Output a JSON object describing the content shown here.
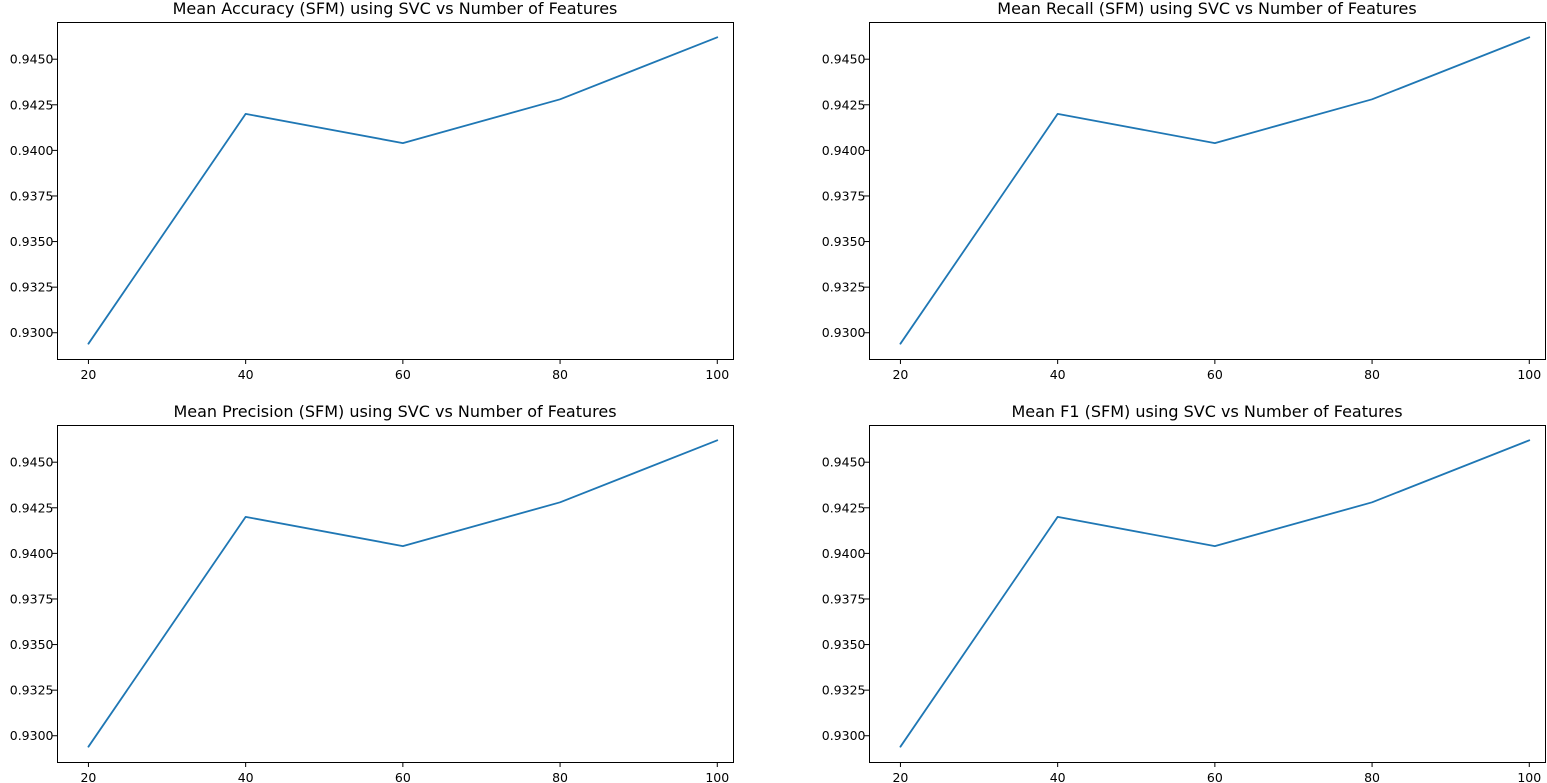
{
  "figure": {
    "background": "#ffffff",
    "line_color": "#1f77b4"
  },
  "chart_data": [
    {
      "type": "line",
      "title": "Mean Accuracy (SFM) using SVC vs Number of Features",
      "xlabel": "",
      "ylabel": "",
      "x": [
        20,
        40,
        60,
        80,
        100
      ],
      "series": [
        {
          "values": [
            0.9294,
            0.942,
            0.9404,
            0.9428,
            0.9462
          ]
        }
      ],
      "xticks": [
        20,
        40,
        60,
        80,
        100
      ],
      "xtick_labels": [
        "20",
        "40",
        "60",
        "80",
        "100"
      ],
      "yticks": [
        0.93,
        0.9325,
        0.935,
        0.9375,
        0.94,
        0.9425,
        0.945
      ],
      "ytick_labels": [
        "0.9300",
        "0.9325",
        "0.9350",
        "0.9375",
        "0.9400",
        "0.9425",
        "0.9450"
      ],
      "xlim": [
        16,
        102
      ],
      "ylim": [
        0.92856,
        0.94704
      ],
      "grid": false,
      "legend": false
    },
    {
      "type": "line",
      "title": "Mean Recall (SFM) using SVC vs Number of Features",
      "xlabel": "",
      "ylabel": "",
      "x": [
        20,
        40,
        60,
        80,
        100
      ],
      "series": [
        {
          "values": [
            0.9294,
            0.942,
            0.9404,
            0.9428,
            0.9462
          ]
        }
      ],
      "xticks": [
        20,
        40,
        60,
        80,
        100
      ],
      "xtick_labels": [
        "20",
        "40",
        "60",
        "80",
        "100"
      ],
      "yticks": [
        0.93,
        0.9325,
        0.935,
        0.9375,
        0.94,
        0.9425,
        0.945
      ],
      "ytick_labels": [
        "0.9300",
        "0.9325",
        "0.9350",
        "0.9375",
        "0.9400",
        "0.9425",
        "0.9450"
      ],
      "xlim": [
        16,
        102
      ],
      "ylim": [
        0.92856,
        0.94704
      ],
      "grid": false,
      "legend": false
    },
    {
      "type": "line",
      "title": "Mean Precision (SFM) using SVC vs Number of Features",
      "xlabel": "",
      "ylabel": "",
      "x": [
        20,
        40,
        60,
        80,
        100
      ],
      "series": [
        {
          "values": [
            0.9294,
            0.942,
            0.9404,
            0.9428,
            0.9462
          ]
        }
      ],
      "xticks": [
        20,
        40,
        60,
        80,
        100
      ],
      "xtick_labels": [
        "20",
        "40",
        "60",
        "80",
        "100"
      ],
      "yticks": [
        0.93,
        0.9325,
        0.935,
        0.9375,
        0.94,
        0.9425,
        0.945
      ],
      "ytick_labels": [
        "0.9300",
        "0.9325",
        "0.9350",
        "0.9375",
        "0.9400",
        "0.9425",
        "0.9450"
      ],
      "xlim": [
        16,
        102
      ],
      "ylim": [
        0.92856,
        0.94704
      ],
      "grid": false,
      "legend": false
    },
    {
      "type": "line",
      "title": "Mean F1 (SFM) using SVC vs Number of Features",
      "xlabel": "",
      "ylabel": "",
      "x": [
        20,
        40,
        60,
        80,
        100
      ],
      "series": [
        {
          "values": [
            0.9294,
            0.942,
            0.9404,
            0.9428,
            0.9462
          ]
        }
      ],
      "xticks": [
        20,
        40,
        60,
        80,
        100
      ],
      "xtick_labels": [
        "20",
        "40",
        "60",
        "80",
        "100"
      ],
      "yticks": [
        0.93,
        0.9325,
        0.935,
        0.9375,
        0.94,
        0.9425,
        0.945
      ],
      "ytick_labels": [
        "0.9300",
        "0.9325",
        "0.9350",
        "0.9375",
        "0.9400",
        "0.9425",
        "0.9450"
      ],
      "xlim": [
        16,
        102
      ],
      "ylim": [
        0.92856,
        0.94704
      ],
      "grid": false,
      "legend": false
    }
  ]
}
